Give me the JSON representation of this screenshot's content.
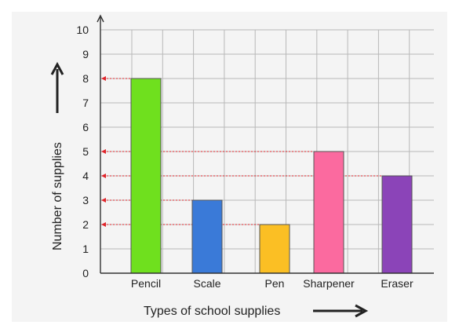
{
  "chart_data": {
    "type": "bar",
    "categories": [
      "Pencil",
      "Scale",
      "Pen",
      "Sharpener",
      "Eraser"
    ],
    "values": [
      8,
      3,
      2,
      5,
      4
    ],
    "bar_colors": [
      "#6fe01e",
      "#3a7ad8",
      "#fbbf24",
      "#fb6a9f",
      "#8b44b8"
    ],
    "xlabel": "Types of school supplies",
    "ylabel": "Number of supplies",
    "ylim": [
      0,
      10
    ],
    "yticks": [
      0,
      1,
      2,
      3,
      4,
      5,
      6,
      7,
      8,
      9,
      10
    ],
    "grid": true,
    "guide_line_color": "#e0242a",
    "background_color": "#f4f4f4"
  }
}
